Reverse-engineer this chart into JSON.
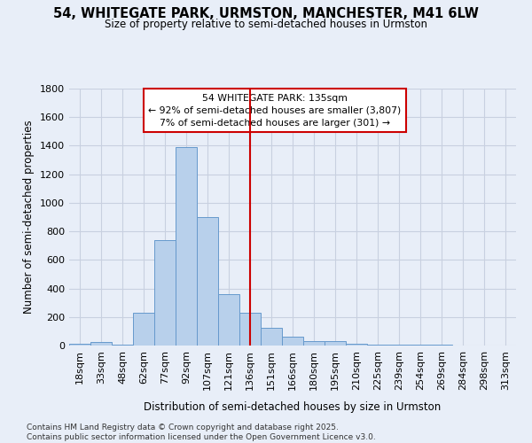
{
  "title1": "54, WHITEGATE PARK, URMSTON, MANCHESTER, M41 6LW",
  "title2": "Size of property relative to semi-detached houses in Urmston",
  "xlabel": "Distribution of semi-detached houses by size in Urmston",
  "ylabel": "Number of semi-detached properties",
  "annotation_title": "54 WHITEGATE PARK: 135sqm",
  "annotation_line1": "← 92% of semi-detached houses are smaller (3,807)",
  "annotation_line2": "7% of semi-detached houses are larger (301) →",
  "bar_categories": [
    "18sqm",
    "33sqm",
    "48sqm",
    "62sqm",
    "77sqm",
    "92sqm",
    "107sqm",
    "121sqm",
    "136sqm",
    "151sqm",
    "166sqm",
    "180sqm",
    "195sqm",
    "210sqm",
    "225sqm",
    "239sqm",
    "254sqm",
    "269sqm",
    "284sqm",
    "298sqm",
    "313sqm"
  ],
  "bar_values": [
    15,
    25,
    5,
    230,
    740,
    1390,
    900,
    360,
    230,
    125,
    65,
    30,
    30,
    10,
    5,
    5,
    5,
    5,
    2,
    2,
    2
  ],
  "bar_color": "#b8d0eb",
  "bar_edgecolor": "#6699cc",
  "vline_color": "#cc0000",
  "vline_x": 8,
  "ylim": [
    0,
    1800
  ],
  "yticks": [
    0,
    200,
    400,
    600,
    800,
    1000,
    1200,
    1400,
    1600,
    1800
  ],
  "grid_color": "#c8d0e0",
  "bg_color": "#e8eef8",
  "footer1": "Contains HM Land Registry data © Crown copyright and database right 2025.",
  "footer2": "Contains public sector information licensed under the Open Government Licence v3.0."
}
